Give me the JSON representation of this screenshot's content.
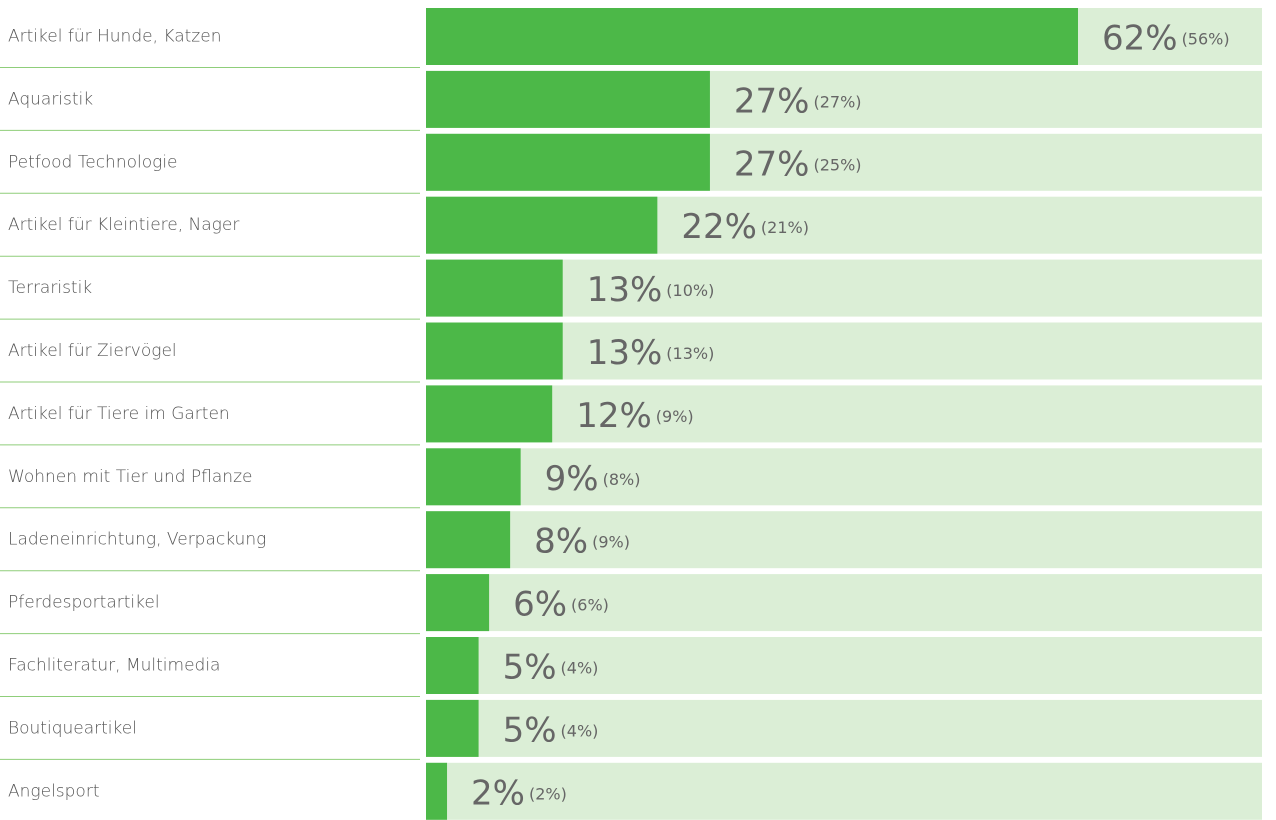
{
  "chart_data": {
    "type": "bar",
    "orientation": "horizontal",
    "categories": [
      "Artikel für Hunde, Katzen",
      "Aquaristik",
      "Petfood Technologie",
      "Artikel für Kleintiere, Nager",
      "Terraristik",
      "Artikel für Ziervögel",
      "Artikel für Tiere im Garten",
      "Wohnen mit Tier und Pflanze",
      "Ladeneinrichtung, Verpackung",
      "Pferdesportartikel",
      "Fachliteratur, Multimedia",
      "Boutiqueartikel",
      "Angelsport"
    ],
    "values": [
      62,
      27,
      27,
      22,
      13,
      13,
      12,
      9,
      8,
      6,
      5,
      5,
      2
    ],
    "value_labels": [
      "62%",
      "27%",
      "27%",
      "22%",
      "13%",
      "13%",
      "12%",
      "9%",
      "8%",
      "6%",
      "5%",
      "5%",
      "2%"
    ],
    "previous_values": [
      56,
      27,
      25,
      21,
      10,
      13,
      9,
      8,
      9,
      6,
      4,
      4,
      2
    ],
    "previous_value_labels": [
      "(56%)",
      "(27%)",
      "(25%)",
      "(21%)",
      "(10%)",
      "(13%)",
      "(9%)",
      "(8%)",
      "(9%)",
      "(6%)",
      "(4%)",
      "(4%)",
      "(2%)"
    ],
    "color": "#4cb848",
    "track_color": "#dbeed6"
  }
}
